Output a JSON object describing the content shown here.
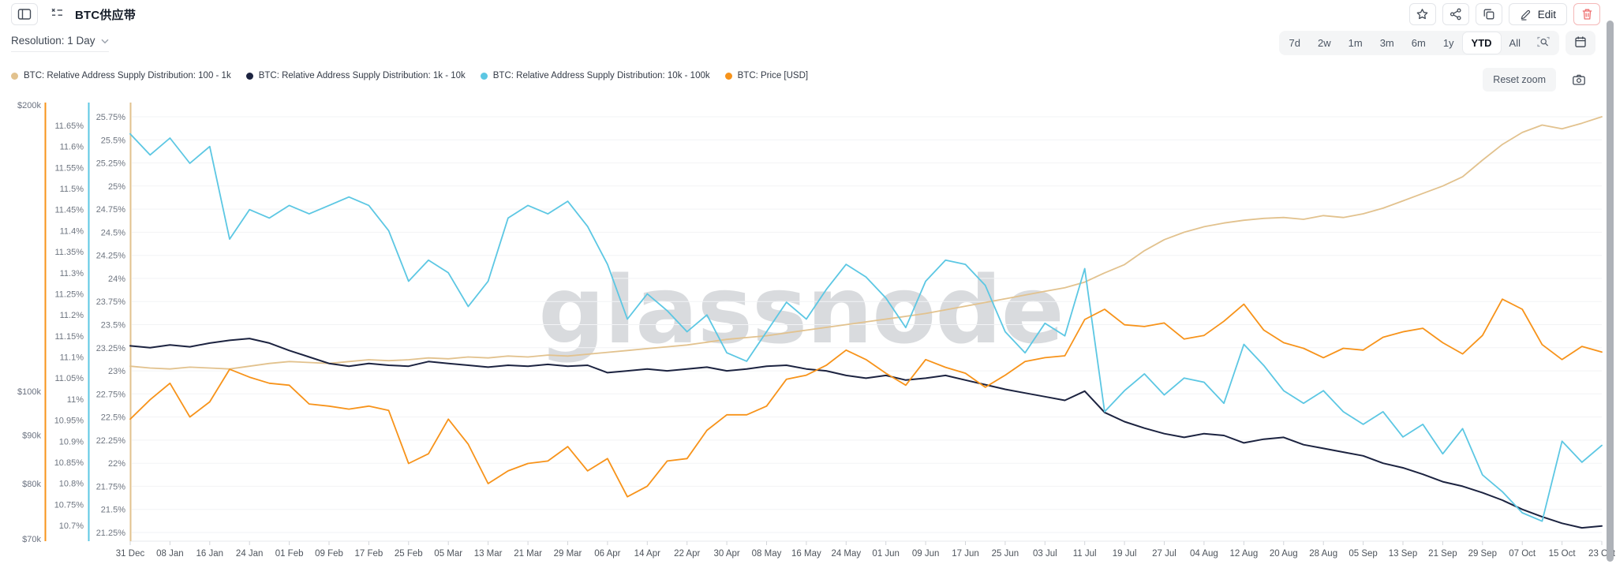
{
  "header": {
    "title": "BTC供应带",
    "edit_label": "Edit"
  },
  "toolbar": {
    "resolution_label": "Resolution: 1 Day",
    "ranges": [
      "7d",
      "2w",
      "1m",
      "3m",
      "6m",
      "1y",
      "YTD",
      "All"
    ],
    "active_range": "YTD",
    "reset_zoom_label": "Reset zoom"
  },
  "legend": [
    {
      "label": "BTC: Relative Address Supply Distribution: 100 - 1k",
      "color": "#e2c28e"
    },
    {
      "label": "BTC: Relative Address Supply Distribution: 1k - 10k",
      "color": "#1c2340"
    },
    {
      "label": "BTC: Relative Address Supply Distribution: 10k - 100k",
      "color": "#5cc7e3"
    },
    {
      "label": "BTC: Price [USD]",
      "color": "#f7931a"
    }
  ],
  "watermark": "glassnode",
  "chart_data": {
    "type": "line",
    "x_ticks": [
      "31 Dec",
      "08 Jan",
      "16 Jan",
      "24 Jan",
      "01 Feb",
      "09 Feb",
      "17 Feb",
      "25 Feb",
      "05 Mar",
      "13 Mar",
      "21 Mar",
      "29 Mar",
      "06 Apr",
      "14 Apr",
      "22 Apr",
      "30 Apr",
      "08 May",
      "16 May",
      "24 May",
      "01 Jun",
      "09 Jun",
      "17 Jun",
      "25 Jun",
      "03 Jul",
      "11 Jul",
      "19 Jul",
      "27 Jul",
      "04 Aug",
      "12 Aug",
      "20 Aug",
      "28 Aug",
      "05 Sep",
      "13 Sep",
      "21 Sep",
      "29 Sep",
      "07 Oct",
      "15 Oct",
      "23 Oct"
    ],
    "axes": {
      "price": {
        "scale": "log",
        "min": 70,
        "max": 200,
        "unit": "kUSD",
        "color": "#f7931a",
        "tick_labels": [
          "$200k",
          "$100k",
          "$90k",
          "$80k",
          "$70k"
        ],
        "tick_values": [
          200,
          100,
          90,
          80,
          70
        ]
      },
      "supply_10k_100k": {
        "scale": "linear",
        "min": 10.7,
        "max": 11.65,
        "tick_step": 0.05,
        "unit": "%",
        "color": "#5cc7e3"
      },
      "supply_100_1k": {
        "scale": "linear",
        "min": 21.25,
        "max": 25.75,
        "tick_step": 0.25,
        "unit": "%",
        "color": "#e2c28e"
      }
    },
    "series": [
      {
        "key": "supply_100_1k",
        "name": "BTC: Relative Address Supply Distribution: 100 - 1k",
        "color": "#e2c28e",
        "axis": "supply_100_1k",
        "unit": "%",
        "values": [
          23.05,
          23.03,
          23.02,
          23.04,
          23.03,
          23.02,
          23.05,
          23.08,
          23.1,
          23.09,
          23.08,
          23.1,
          23.12,
          23.11,
          23.12,
          23.14,
          23.13,
          23.15,
          23.14,
          23.16,
          23.15,
          23.17,
          23.16,
          23.18,
          23.2,
          23.22,
          23.24,
          23.26,
          23.28,
          23.31,
          23.34,
          23.36,
          23.38,
          23.41,
          23.44,
          23.47,
          23.5,
          23.53,
          23.56,
          23.59,
          23.62,
          23.66,
          23.7,
          23.74,
          23.78,
          23.82,
          23.86,
          23.9,
          23.96,
          24.06,
          24.15,
          24.3,
          24.42,
          24.5,
          24.56,
          24.6,
          24.63,
          24.65,
          24.66,
          24.64,
          24.68,
          24.66,
          24.7,
          24.76,
          24.84,
          24.92,
          25.0,
          25.1,
          25.28,
          25.45,
          25.58,
          25.66,
          25.62,
          25.68,
          25.75
        ]
      },
      {
        "key": "supply_1k_10k",
        "name": "BTC: Relative Address Supply Distribution: 1k - 10k",
        "color": "#1c2340",
        "axis": "supply_100_1k",
        "unit": "%",
        "values": [
          23.27,
          23.25,
          23.28,
          23.26,
          23.3,
          23.33,
          23.35,
          23.3,
          23.22,
          23.15,
          23.08,
          23.05,
          23.08,
          23.06,
          23.05,
          23.1,
          23.08,
          23.06,
          23.04,
          23.06,
          23.05,
          23.07,
          23.05,
          23.06,
          22.98,
          23.0,
          23.02,
          23.0,
          23.02,
          23.04,
          23.0,
          23.02,
          23.05,
          23.06,
          23.02,
          23.0,
          22.95,
          22.92,
          22.95,
          22.9,
          22.92,
          22.95,
          22.9,
          22.85,
          22.8,
          22.76,
          22.72,
          22.68,
          22.78,
          22.55,
          22.45,
          22.38,
          22.32,
          22.28,
          22.32,
          22.3,
          22.22,
          22.26,
          22.28,
          22.2,
          22.16,
          22.12,
          22.08,
          22.0,
          21.95,
          21.88,
          21.8,
          21.75,
          21.68,
          21.6,
          21.5,
          21.42,
          21.35,
          21.3,
          21.32
        ]
      },
      {
        "key": "supply_10k_100k",
        "name": "BTC: Relative Address Supply Distribution: 10k - 100k",
        "color": "#5cc7e3",
        "axis": "supply_10k_100k",
        "unit": "%",
        "values": [
          11.63,
          11.58,
          11.62,
          11.56,
          11.6,
          11.38,
          11.45,
          11.43,
          11.46,
          11.44,
          11.46,
          11.48,
          11.46,
          11.4,
          11.28,
          11.33,
          11.3,
          11.22,
          11.28,
          11.43,
          11.46,
          11.44,
          11.47,
          11.41,
          11.32,
          11.19,
          11.25,
          11.21,
          11.16,
          11.2,
          11.11,
          11.09,
          11.16,
          11.23,
          11.19,
          11.26,
          11.32,
          11.29,
          11.24,
          11.17,
          11.28,
          11.33,
          11.32,
          11.27,
          11.16,
          11.11,
          11.18,
          11.15,
          11.31,
          10.97,
          11.02,
          11.06,
          11.01,
          11.05,
          11.04,
          10.99,
          11.13,
          11.08,
          11.02,
          10.99,
          11.02,
          10.97,
          10.94,
          10.97,
          10.91,
          10.94,
          10.87,
          10.93,
          10.82,
          10.78,
          10.73,
          10.71,
          10.9,
          10.85,
          10.89
        ]
      },
      {
        "key": "price",
        "name": "BTC: Price [USD]",
        "color": "#f7931a",
        "axis": "price",
        "unit": "kUSD",
        "values": [
          93.5,
          98,
          102,
          94,
          97.5,
          105.5,
          103.5,
          102,
          101.5,
          97,
          96.5,
          95.8,
          96.5,
          95.5,
          84,
          86,
          93.5,
          88,
          80,
          82.5,
          84,
          84.5,
          87.5,
          82.5,
          85,
          77.5,
          79.5,
          84.5,
          85,
          91,
          94.5,
          94.5,
          96.5,
          103,
          104,
          106.5,
          110.5,
          108,
          104.5,
          101.5,
          108,
          106,
          104.5,
          101,
          104,
          107.5,
          108.5,
          109,
          119,
          122,
          117.5,
          117,
          118,
          113.5,
          114.5,
          118.5,
          123.5,
          116,
          112.5,
          111,
          108.5,
          111,
          110.5,
          114,
          115.5,
          116.5,
          112.5,
          109.5,
          114.5,
          125,
          122,
          112,
          108,
          111.5,
          110
        ]
      }
    ]
  }
}
